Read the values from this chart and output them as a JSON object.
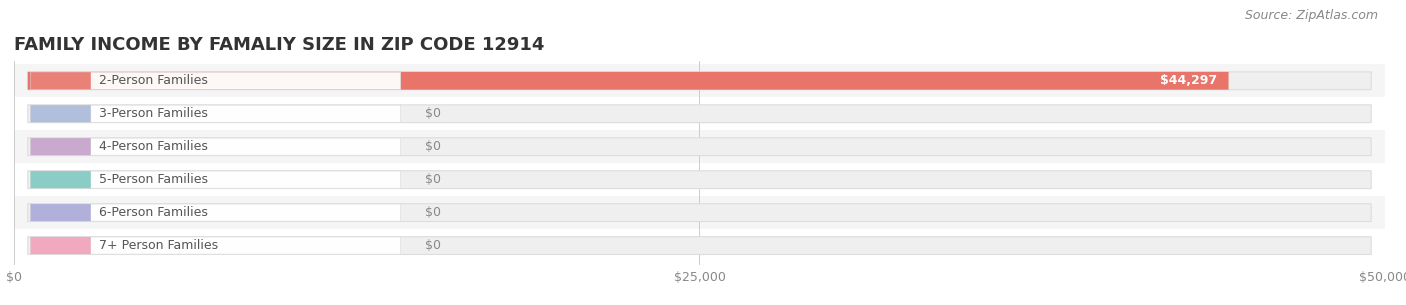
{
  "title": "FAMILY INCOME BY FAMALIY SIZE IN ZIP CODE 12914",
  "source": "Source: ZipAtlas.com",
  "categories": [
    "2-Person Families",
    "3-Person Families",
    "4-Person Families",
    "5-Person Families",
    "6-Person Families",
    "7+ Person Families"
  ],
  "values": [
    44297,
    0,
    0,
    0,
    0,
    0
  ],
  "bar_colors": [
    "#e8746a",
    "#a8b8d8",
    "#c4a0c8",
    "#7ec8c0",
    "#a8a8d8",
    "#f0a0b8"
  ],
  "value_labels": [
    "$44,297",
    "$0",
    "$0",
    "$0",
    "$0",
    "$0"
  ],
  "xlim": [
    0,
    50000
  ],
  "xticks": [
    0,
    25000,
    50000
  ],
  "xticklabels": [
    "$0",
    "$25,000",
    "$50,000"
  ],
  "background_color": "#ffffff",
  "row_bg_colors": [
    "#f5f5f5",
    "#ffffff"
  ],
  "title_fontsize": 13,
  "label_fontsize": 9,
  "value_fontsize": 9,
  "source_fontsize": 9,
  "title_color": "#333333",
  "label_text_color": "#555555",
  "value_text_color_inside": "#ffffff",
  "value_text_color_outside": "#888888"
}
